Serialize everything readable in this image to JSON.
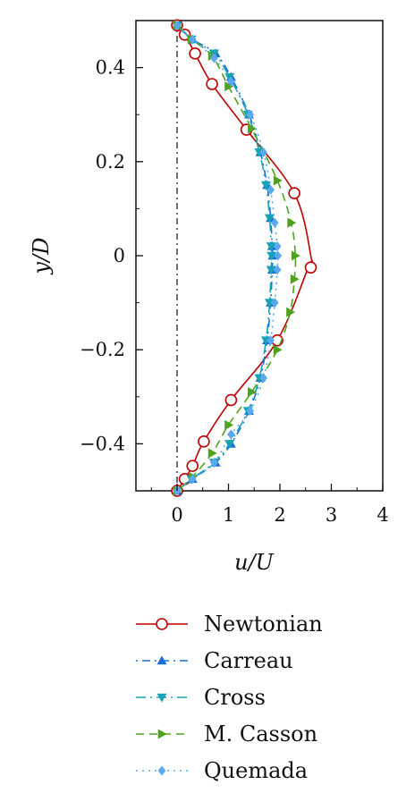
{
  "chart_data": {
    "type": "line",
    "title": "",
    "xlabel": "u/U",
    "ylabel": "y/D",
    "xlim": [
      -0.8,
      4.0
    ],
    "ylim": [
      -0.5,
      0.5
    ],
    "xticks": [
      "0",
      "1",
      "2",
      "3",
      "4"
    ],
    "yticks": [
      "0.4",
      "0.2",
      "0",
      "−0.2",
      "−0.4"
    ],
    "reference_line": {
      "x": 0,
      "style": "dash-dot"
    },
    "legend": {
      "placement": "below"
    },
    "grid": false,
    "series": [
      {
        "name": "Newtonian",
        "color": "#c00000",
        "dash": "",
        "marker": "circle-open",
        "x": [
          0.0,
          0.15,
          0.35,
          0.68,
          1.35,
          2.28,
          2.6,
          2.55,
          1.95,
          1.05,
          0.52,
          0.3,
          0.15,
          0.0
        ],
        "y": [
          0.49,
          0.47,
          0.43,
          0.365,
          0.268,
          0.133,
          0.0,
          -0.025,
          -0.18,
          -0.307,
          -0.395,
          -0.447,
          -0.475,
          -0.5
        ],
        "markers_y": [
          0.49,
          0.47,
          0.43,
          0.365,
          0.268,
          0.133,
          -0.025,
          -0.18,
          -0.307,
          -0.395,
          -0.447,
          -0.475,
          -0.5
        ],
        "markers_x": [
          0.0,
          0.15,
          0.35,
          0.68,
          1.35,
          2.28,
          2.6,
          1.95,
          1.05,
          0.52,
          0.3,
          0.15,
          0.0
        ]
      },
      {
        "name": "Carreau",
        "color": "#1a6fd4",
        "dash": "2,5,9,5",
        "marker": "triangle-up",
        "x": [
          0.0,
          0.3,
          0.75,
          1.05,
          1.4,
          1.62,
          1.75,
          1.82,
          1.85,
          1.86,
          1.85,
          1.82,
          1.75,
          1.62,
          1.4,
          1.05,
          0.75,
          0.3,
          0.0
        ],
        "y": [
          0.49,
          0.46,
          0.43,
          0.38,
          0.3,
          0.22,
          0.15,
          0.08,
          0.02,
          0.0,
          -0.03,
          -0.1,
          -0.18,
          -0.26,
          -0.33,
          -0.4,
          -0.44,
          -0.475,
          -0.5
        ]
      },
      {
        "name": "Cross",
        "color": "#16a3b8",
        "dash": "11,5,2,5",
        "marker": "triangle-down",
        "x": [
          0.0,
          0.28,
          0.72,
          1.02,
          1.38,
          1.6,
          1.73,
          1.8,
          1.83,
          1.84,
          1.83,
          1.8,
          1.73,
          1.6,
          1.38,
          1.02,
          0.72,
          0.28,
          0.0
        ],
        "y": [
          0.49,
          0.46,
          0.43,
          0.38,
          0.3,
          0.22,
          0.15,
          0.08,
          0.02,
          0.0,
          -0.03,
          -0.1,
          -0.18,
          -0.26,
          -0.33,
          -0.4,
          -0.44,
          -0.475,
          -0.5
        ]
      },
      {
        "name": "M. Casson",
        "color": "#4ea21e",
        "dash": "9,6",
        "marker": "triangle-right",
        "x": [
          0.0,
          0.28,
          0.68,
          1.0,
          1.45,
          1.95,
          2.22,
          2.3,
          2.28,
          2.2,
          1.95,
          1.45,
          1.0,
          0.68,
          0.3,
          0.0
        ],
        "y": [
          0.49,
          0.46,
          0.425,
          0.36,
          0.27,
          0.16,
          0.07,
          0.0,
          -0.05,
          -0.12,
          -0.2,
          -0.29,
          -0.36,
          -0.42,
          -0.47,
          -0.5
        ]
      },
      {
        "name": "Quemada",
        "color": "#5aa9f0",
        "dash": "2,5",
        "marker": "diamond",
        "x": [
          0.0,
          0.3,
          0.72,
          1.05,
          1.42,
          1.68,
          1.82,
          1.9,
          1.95,
          1.96,
          1.95,
          1.9,
          1.82,
          1.68,
          1.42,
          1.05,
          0.72,
          0.3,
          0.0
        ],
        "y": [
          0.49,
          0.46,
          0.42,
          0.37,
          0.3,
          0.22,
          0.14,
          0.07,
          0.02,
          0.0,
          -0.03,
          -0.1,
          -0.18,
          -0.26,
          -0.33,
          -0.38,
          -0.44,
          -0.475,
          -0.5
        ]
      }
    ]
  }
}
